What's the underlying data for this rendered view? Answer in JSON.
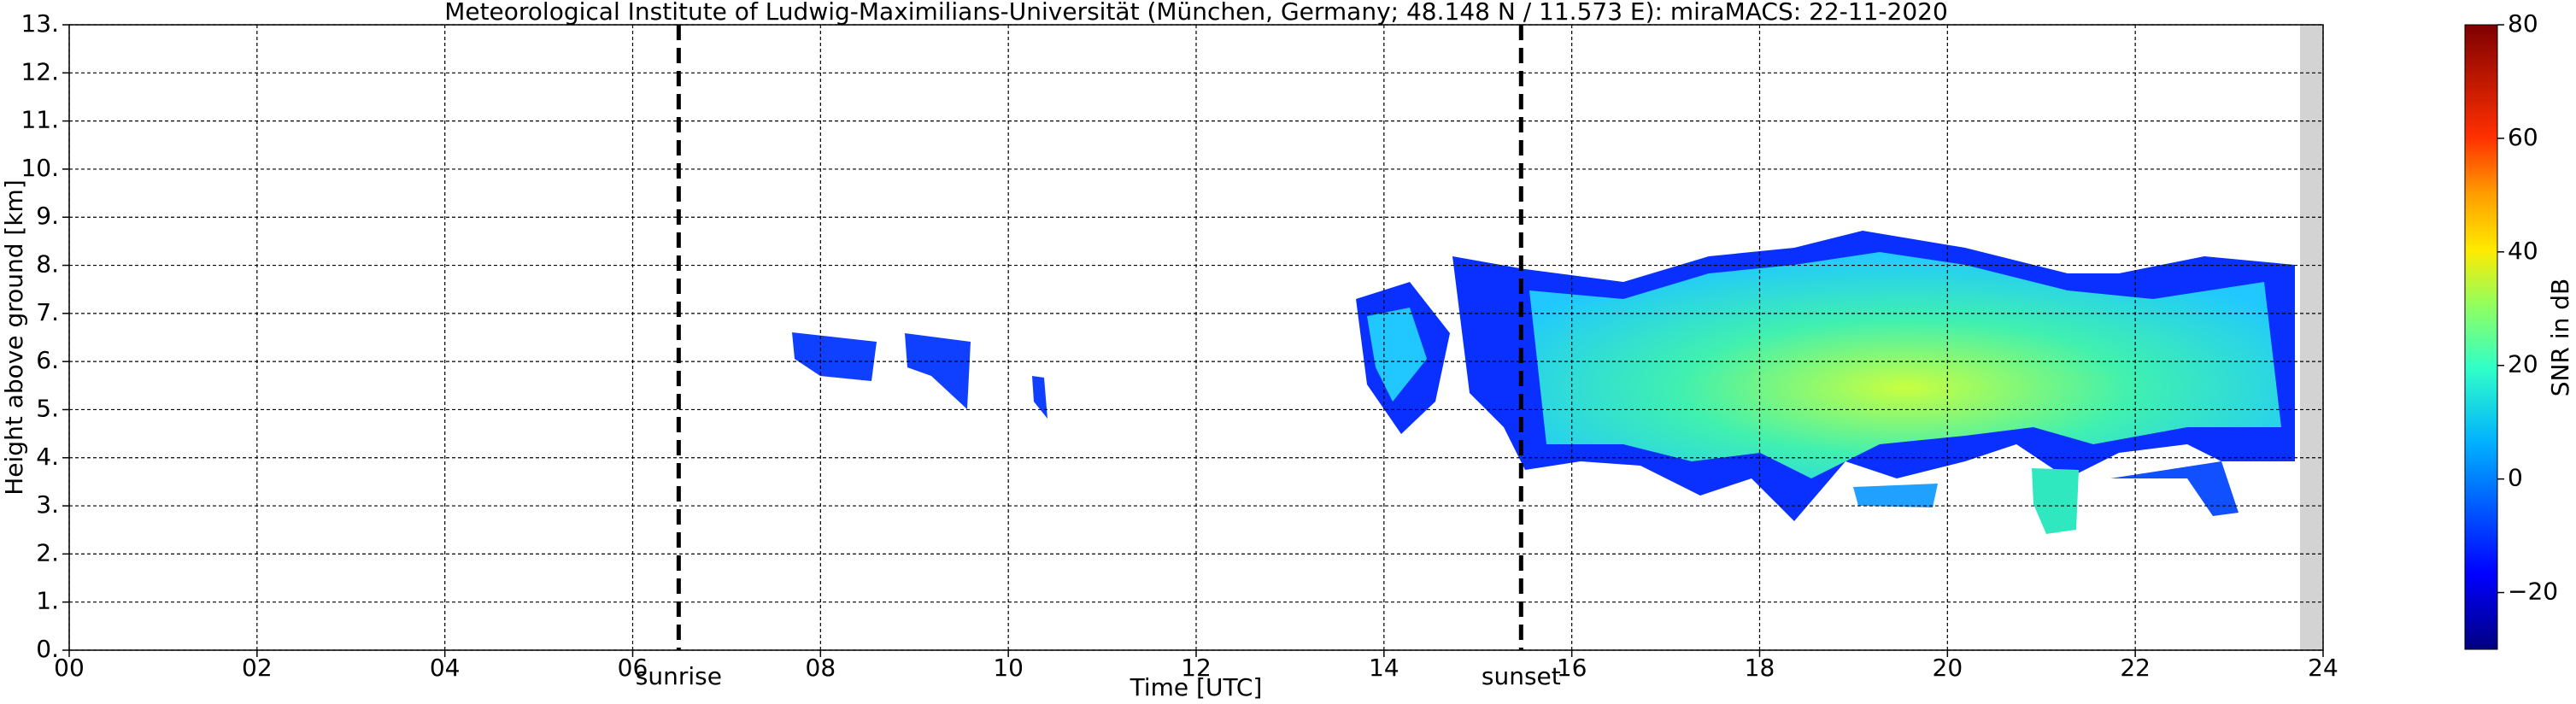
{
  "chart_data": {
    "type": "heatmap",
    "title": "Meteorological Institute of Ludwig-Maximilians-Universität (München, Germany; 48.148 N / 11.573 E):    miraMACS: 22-11-2020",
    "xlabel": "Time [UTC]",
    "ylabel": "Height above ground [km]",
    "xlim": [
      0,
      24
    ],
    "xticks": [
      {
        "value": 0,
        "label": "00"
      },
      {
        "value": 2,
        "label": "02"
      },
      {
        "value": 4,
        "label": "04"
      },
      {
        "value": 6,
        "label": "06"
      },
      {
        "value": 8,
        "label": "08"
      },
      10,
      12,
      14,
      16,
      18,
      20,
      22,
      24
    ],
    "ylim": [
      0,
      13
    ],
    "yticks": [
      {
        "value": 0,
        "label": "0."
      },
      {
        "value": 1,
        "label": "1."
      },
      {
        "value": 2,
        "label": "2."
      },
      {
        "value": 3,
        "label": "3."
      },
      {
        "value": 4,
        "label": "4."
      },
      {
        "value": 5,
        "label": "5."
      },
      {
        "value": 6,
        "label": "6."
      },
      {
        "value": 7,
        "label": "7."
      },
      {
        "value": 8,
        "label": "8."
      },
      {
        "value": 9,
        "label": "9."
      },
      {
        "value": 10,
        "label": "10."
      },
      {
        "value": 11,
        "label": "11."
      },
      {
        "value": 12,
        "label": "12."
      },
      {
        "value": 13,
        "label": "13."
      }
    ],
    "grid": true,
    "annotations": [
      {
        "text": "sunrise",
        "x": 6.49
      },
      {
        "text": "sunset",
        "x": 15.46
      }
    ],
    "colorbar": {
      "label": "SNR in dB",
      "clim": [
        -30,
        80
      ],
      "cticks": [
        {
          "value": -20,
          "label": "−20"
        },
        0,
        20,
        40,
        60,
        80
      ]
    }
  }
}
